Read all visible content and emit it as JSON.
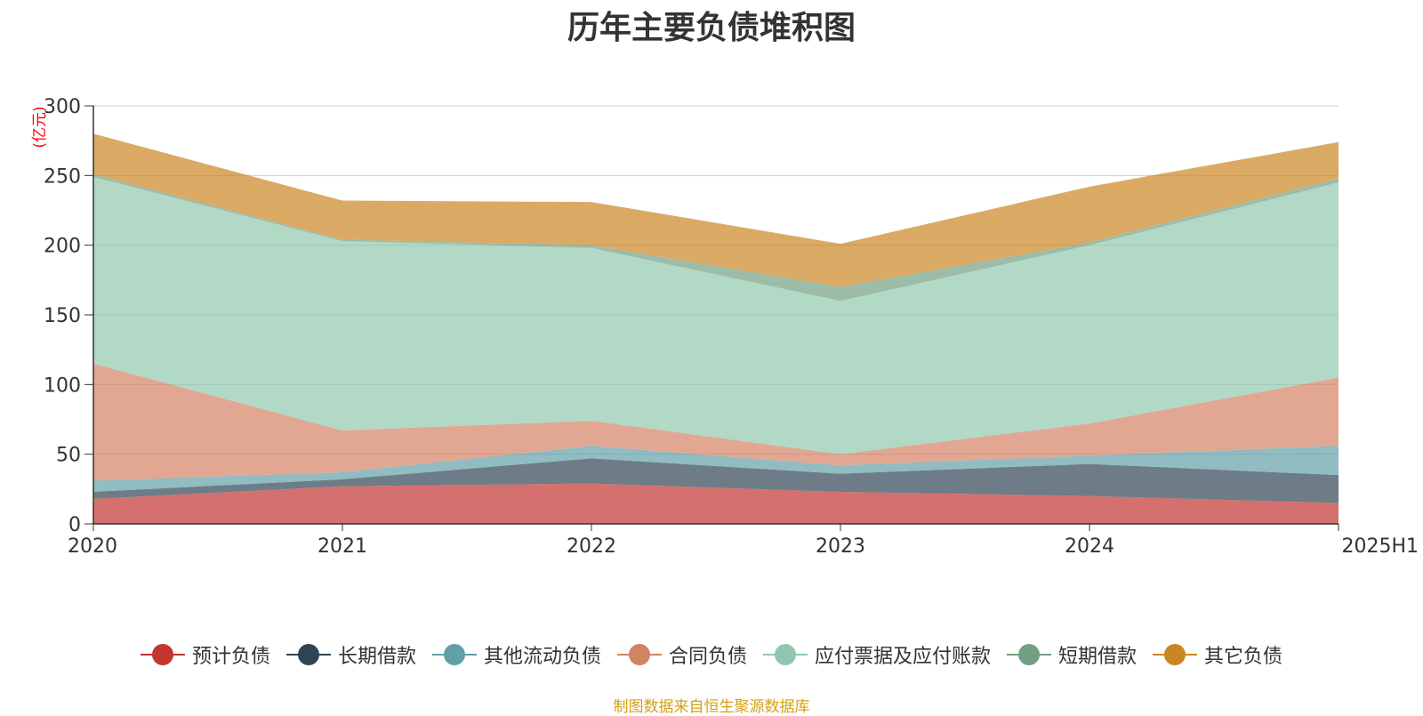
{
  "chart_data": {
    "type": "area",
    "stacked": true,
    "title": "历年主要负债堆积图",
    "ylabel": "(亿元)",
    "xlabel": "",
    "categories": [
      "2020",
      "2021",
      "2022",
      "2023",
      "2024",
      "2025H1"
    ],
    "ylim": [
      0,
      300
    ],
    "yticks": [
      0,
      50,
      100,
      150,
      200,
      250,
      300
    ],
    "grid": true,
    "legend_position": "bottom",
    "series": [
      {
        "name": "预计负债",
        "color": "#c23531",
        "values": [
          18,
          27,
          29,
          23,
          20,
          15
        ]
      },
      {
        "name": "长期借款",
        "color": "#2f4554",
        "values": [
          5,
          5,
          18,
          13,
          23,
          20
        ]
      },
      {
        "name": "其他流动负债",
        "color": "#61a0a8",
        "values": [
          8,
          5,
          9,
          6,
          6,
          21
        ]
      },
      {
        "name": "合同负债",
        "color": "#d48265",
        "values": [
          84,
          30,
          18,
          8,
          23,
          49
        ]
      },
      {
        "name": "应付票据及应付账款",
        "color": "#91c7ae",
        "values": [
          134,
          136,
          124,
          110,
          128,
          140
        ]
      },
      {
        "name": "短期借款",
        "color": "#749f83",
        "values": [
          2,
          1,
          2,
          10,
          2,
          3
        ]
      },
      {
        "name": "其它负债",
        "color": "#ca8622",
        "values": [
          29,
          28,
          31,
          31,
          40,
          26
        ]
      }
    ]
  },
  "footer": {
    "source_note": "制图数据来自恒生聚源数据库"
  }
}
